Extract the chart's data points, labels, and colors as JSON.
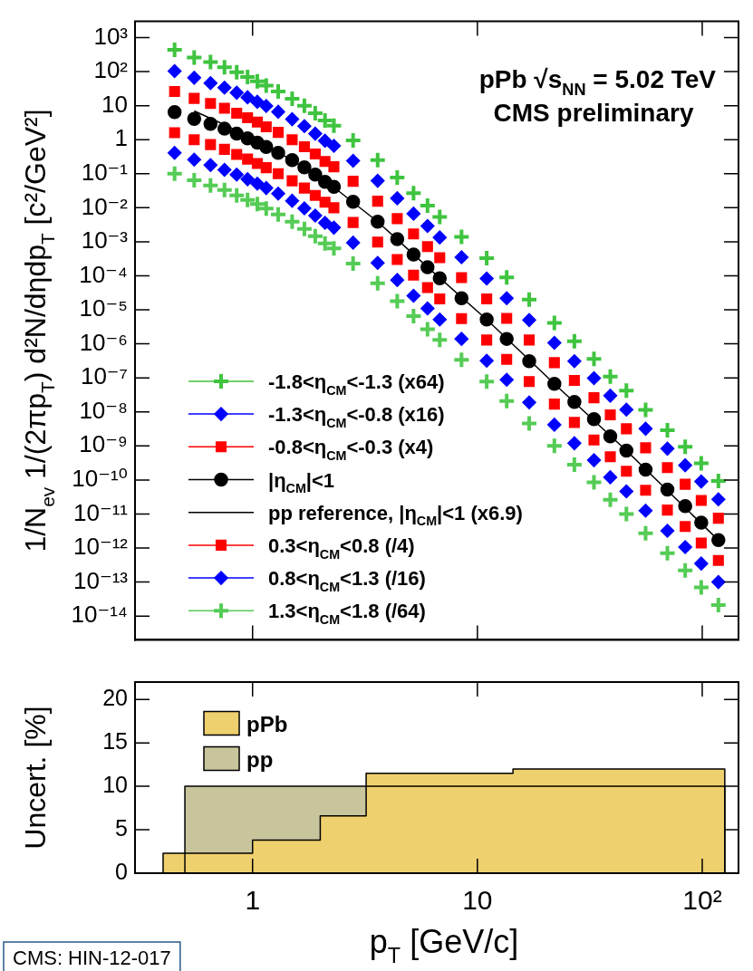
{
  "chart_data": [
    {
      "type": "scatter",
      "title": "pPb √s$_{NN}$ = 5.02 TeV",
      "subtitle": "CMS preliminary",
      "ylabel": "1/N$_{ev}$ 1/(2πp$_{T}$) d²N/dηdp$_{T}$ [c²/GeV²]",
      "log": "xy",
      "tick_labels": "y",
      "legend": "bottom left",
      "xlim": [
        0.3,
        145
      ],
      "xticks": [
        {
          "value": 1,
          "label": null
        },
        {
          "value": 10,
          "label": null
        },
        {
          "value": 100,
          "label": null
        }
      ],
      "ylim": [
        2e-15,
        3000
      ],
      "yticks": [
        {
          "value": 1000,
          "label": "10³"
        },
        {
          "value": 100,
          "label": "10²"
        },
        10,
        1,
        {
          "value": 0.1,
          "label": "10⁻¹"
        },
        {
          "value": 0.01,
          "label": "10⁻²"
        },
        {
          "value": 0.001,
          "label": "10⁻³"
        },
        {
          "value": 0.0001,
          "label": "10⁻⁴"
        },
        {
          "value": 1e-05,
          "label": "10⁻⁵"
        },
        {
          "value": 1e-06,
          "label": "10⁻⁶"
        },
        {
          "value": 1e-07,
          "label": "10⁻⁷"
        },
        {
          "value": 1e-08,
          "label": "10⁻⁸"
        },
        {
          "value": 1e-09,
          "label": "10⁻⁹"
        },
        {
          "value": 1e-10,
          "label": "10⁻¹⁰"
        },
        {
          "value": 1e-11,
          "label": "10⁻¹¹"
        },
        {
          "value": 1e-12,
          "label": "10⁻¹²"
        },
        {
          "value": 1e-13,
          "label": "10⁻¹³"
        },
        {
          "value": 1e-14,
          "label": "10⁻¹⁴"
        }
      ],
      "x": [
        0.45,
        0.55,
        0.65,
        0.75,
        0.85,
        0.95,
        1.05,
        1.15,
        1.3,
        1.5,
        1.7,
        1.9,
        2.1,
        2.3,
        2.8,
        3.6,
        4.4,
        5.2,
        6.0,
        6.8,
        8.5,
        11,
        13.5,
        17,
        22,
        27,
        33,
        39,
        46,
        56,
        70,
        84,
        99,
        118
      ],
      "series": [
        {
          "name": "-1.8<η$_{CM}$<-1.3 (x64)",
          "color": "#3fc43f",
          "marker": "cross",
          "values": [
            440,
            260,
            190,
            135,
            96,
            70,
            52,
            39,
            26,
            16,
            9.9,
            6.0,
            3.7,
            2.6,
            0.96,
            0.25,
            0.077,
            0.027,
            0.0115,
            0.0054,
            0.0014,
            0.00033,
            9e-05,
            2e-05,
            4.1e-06,
            1.2e-06,
            3.6e-07,
            1.1e-07,
            4.2e-08,
            1.15e-08,
            2.9e-09,
            9.4e-10,
            3.1e-10,
            9.4e-11
          ]
        },
        {
          "name": "-1.3<η$_{CM}$<-0.8 (x16)",
          "color": "#0000ff",
          "marker": "diamond",
          "values": [
            104,
            66,
            46,
            34,
            24,
            17.6,
            13,
            9.8,
            6.6,
            4.0,
            2.5,
            1.5,
            0.93,
            0.66,
            0.24,
            0.062,
            0.019,
            0.0067,
            0.0029,
            0.00134,
            0.00035,
            8.3e-05,
            2.2e-05,
            5e-06,
            1.07e-06,
            3.1e-07,
            9.8e-08,
            3e-08,
            1.17e-08,
            3.2e-09,
            8.3e-10,
            2.7e-10,
            9e-11,
            2.7e-11
          ]
        },
        {
          "name": "-0.8<η$_{CM}$<-0.3 (x4)",
          "color": "#ff0000",
          "marker": "square",
          "values": [
            26,
            16.4,
            11.6,
            8.4,
            6.0,
            4.4,
            3.3,
            2.4,
            1.64,
            1.0,
            0.62,
            0.38,
            0.23,
            0.16,
            0.06,
            0.0156,
            0.0048,
            0.0017,
            0.00072,
            0.00034,
            8.8e-05,
            2.1e-05,
            5.6e-06,
            1.3e-06,
            2.8e-07,
            8.4e-08,
            2.6e-08,
            8.2e-09,
            3.2e-09,
            8.8e-10,
            2.3e-10,
            7.5e-11,
            2.5e-11,
            7.5e-12
          ]
        },
        {
          "name": "|η$_{CM}$|<1",
          "color": "#000000",
          "marker": "circle",
          "values": [
            6.5,
            4.1,
            2.9,
            2.1,
            1.5,
            1.1,
            0.82,
            0.61,
            0.41,
            0.25,
            0.154,
            0.094,
            0.058,
            0.041,
            0.015,
            0.0039,
            0.0012,
            0.00042,
            0.00018,
            8.4e-05,
            2.2e-05,
            5.2e-06,
            1.4e-06,
            3.1e-07,
            6.7e-08,
            1.95e-08,
            6.1e-09,
            1.9e-09,
            7.3e-10,
            2e-10,
            5.2e-11,
            1.7e-11,
            5.6e-12,
            1.7e-12
          ]
        },
        {
          "name": "pp reference, |η$_{CM}$|<1 (x6.9)",
          "type": "line",
          "color": "#000000",
          "marker": "none",
          "x": [
            0.55,
            0.75,
            1.05,
            1.5,
            2.3,
            3.6,
            6.0,
            11,
            22,
            46,
            118
          ],
          "values": [
            7.0,
            2.75,
            0.93,
            0.25,
            0.04,
            0.0039,
            0.00018,
            5.2e-06,
            6.7e-08,
            7.3e-10,
            1.7e-12
          ]
        },
        {
          "name": "0.3<η$_{CM}$<0.8 (/4)",
          "color": "#ff0000",
          "marker": "square",
          "values": [
            1.6,
            1.0,
            0.72,
            0.52,
            0.37,
            0.27,
            0.2,
            0.15,
            0.1,
            0.062,
            0.038,
            0.023,
            0.0145,
            0.01,
            0.0037,
            0.00098,
            0.0003,
            0.000105,
            4.5e-05,
            2.1e-05,
            5.5e-06,
            1.3e-06,
            3.5e-07,
            7.8e-08,
            1.7e-08,
            4.9e-09,
            1.5e-09,
            4.8e-10,
            1.8e-10,
            5e-11,
            1.3e-11,
            4.3e-12,
            1.4e-12,
            4.3e-13
          ]
        },
        {
          "name": "0.8<η$_{CM}$<1.3 (/16)",
          "color": "#0000ff",
          "marker": "diamond",
          "values": [
            0.41,
            0.26,
            0.18,
            0.13,
            0.094,
            0.069,
            0.051,
            0.038,
            0.026,
            0.016,
            0.0096,
            0.0059,
            0.0036,
            0.0026,
            0.00094,
            0.00024,
            7.5e-05,
            2.6e-05,
            1.1e-05,
            5.2e-06,
            1.4e-06,
            3.2e-07,
            8.8e-08,
            1.9e-08,
            4.2e-09,
            1.2e-09,
            3.8e-10,
            1.2e-10,
            4.6e-11,
            1.25e-11,
            3.2e-12,
            1.06e-12,
            3.5e-13,
            1e-13
          ]
        },
        {
          "name": "1.3<η$_{CM}$<1.8 (/64)",
          "color": "#55cc55",
          "marker": "cross",
          "values": [
            0.1,
            0.064,
            0.045,
            0.033,
            0.023,
            0.017,
            0.0128,
            0.0095,
            0.0064,
            0.0039,
            0.0024,
            0.00146,
            0.0009,
            0.00064,
            0.00023,
            6e-05,
            1.8e-05,
            6.5e-06,
            2.7e-06,
            1.3e-06,
            3.4e-07,
            7.8e-08,
            2.1e-08,
            4.6e-09,
            1e-09,
            2.8e-10,
            8.5e-11,
            2.6e-11,
            1e-11,
            2.7e-12,
            7e-13,
            2.2e-13,
            7e-14,
            2.1e-14
          ]
        }
      ]
    },
    {
      "type": "area",
      "xlabel": "p$_{T}$ [GeV/c]",
      "ylabel": "Uncert. [%]",
      "log": "x",
      "legend": "top left",
      "annotations": [
        "CMS: HIN-12-017"
      ],
      "xlim": [
        0.3,
        145
      ],
      "xticks": [
        1,
        10,
        {
          "value": 100,
          "label": "10²"
        }
      ],
      "ylim": [
        0,
        22
      ],
      "yticks": [
        0,
        5,
        10,
        15,
        20
      ],
      "series": [
        {
          "name": "pPb",
          "color": "#efd06e",
          "x": [
            0.4,
            0.4,
            1,
            1,
            2,
            2,
            3.2,
            3.2,
            14.4,
            14.4,
            126,
            126
          ],
          "values": [
            0,
            2.3,
            2.3,
            3.8,
            3.8,
            6.6,
            6.6,
            11.5,
            11.5,
            12,
            12,
            0
          ]
        },
        {
          "name": "pp",
          "color": "#c8c59c",
          "x": [
            0.5,
            0.5,
            126,
            126
          ],
          "values": [
            0,
            10,
            10,
            0
          ]
        }
      ]
    }
  ]
}
